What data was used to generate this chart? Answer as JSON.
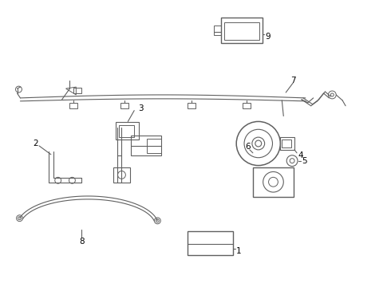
{
  "background_color": "#ffffff",
  "line_color": "#606060",
  "label_color": "#000000",
  "fig_width": 4.9,
  "fig_height": 3.6,
  "dpi": 100
}
